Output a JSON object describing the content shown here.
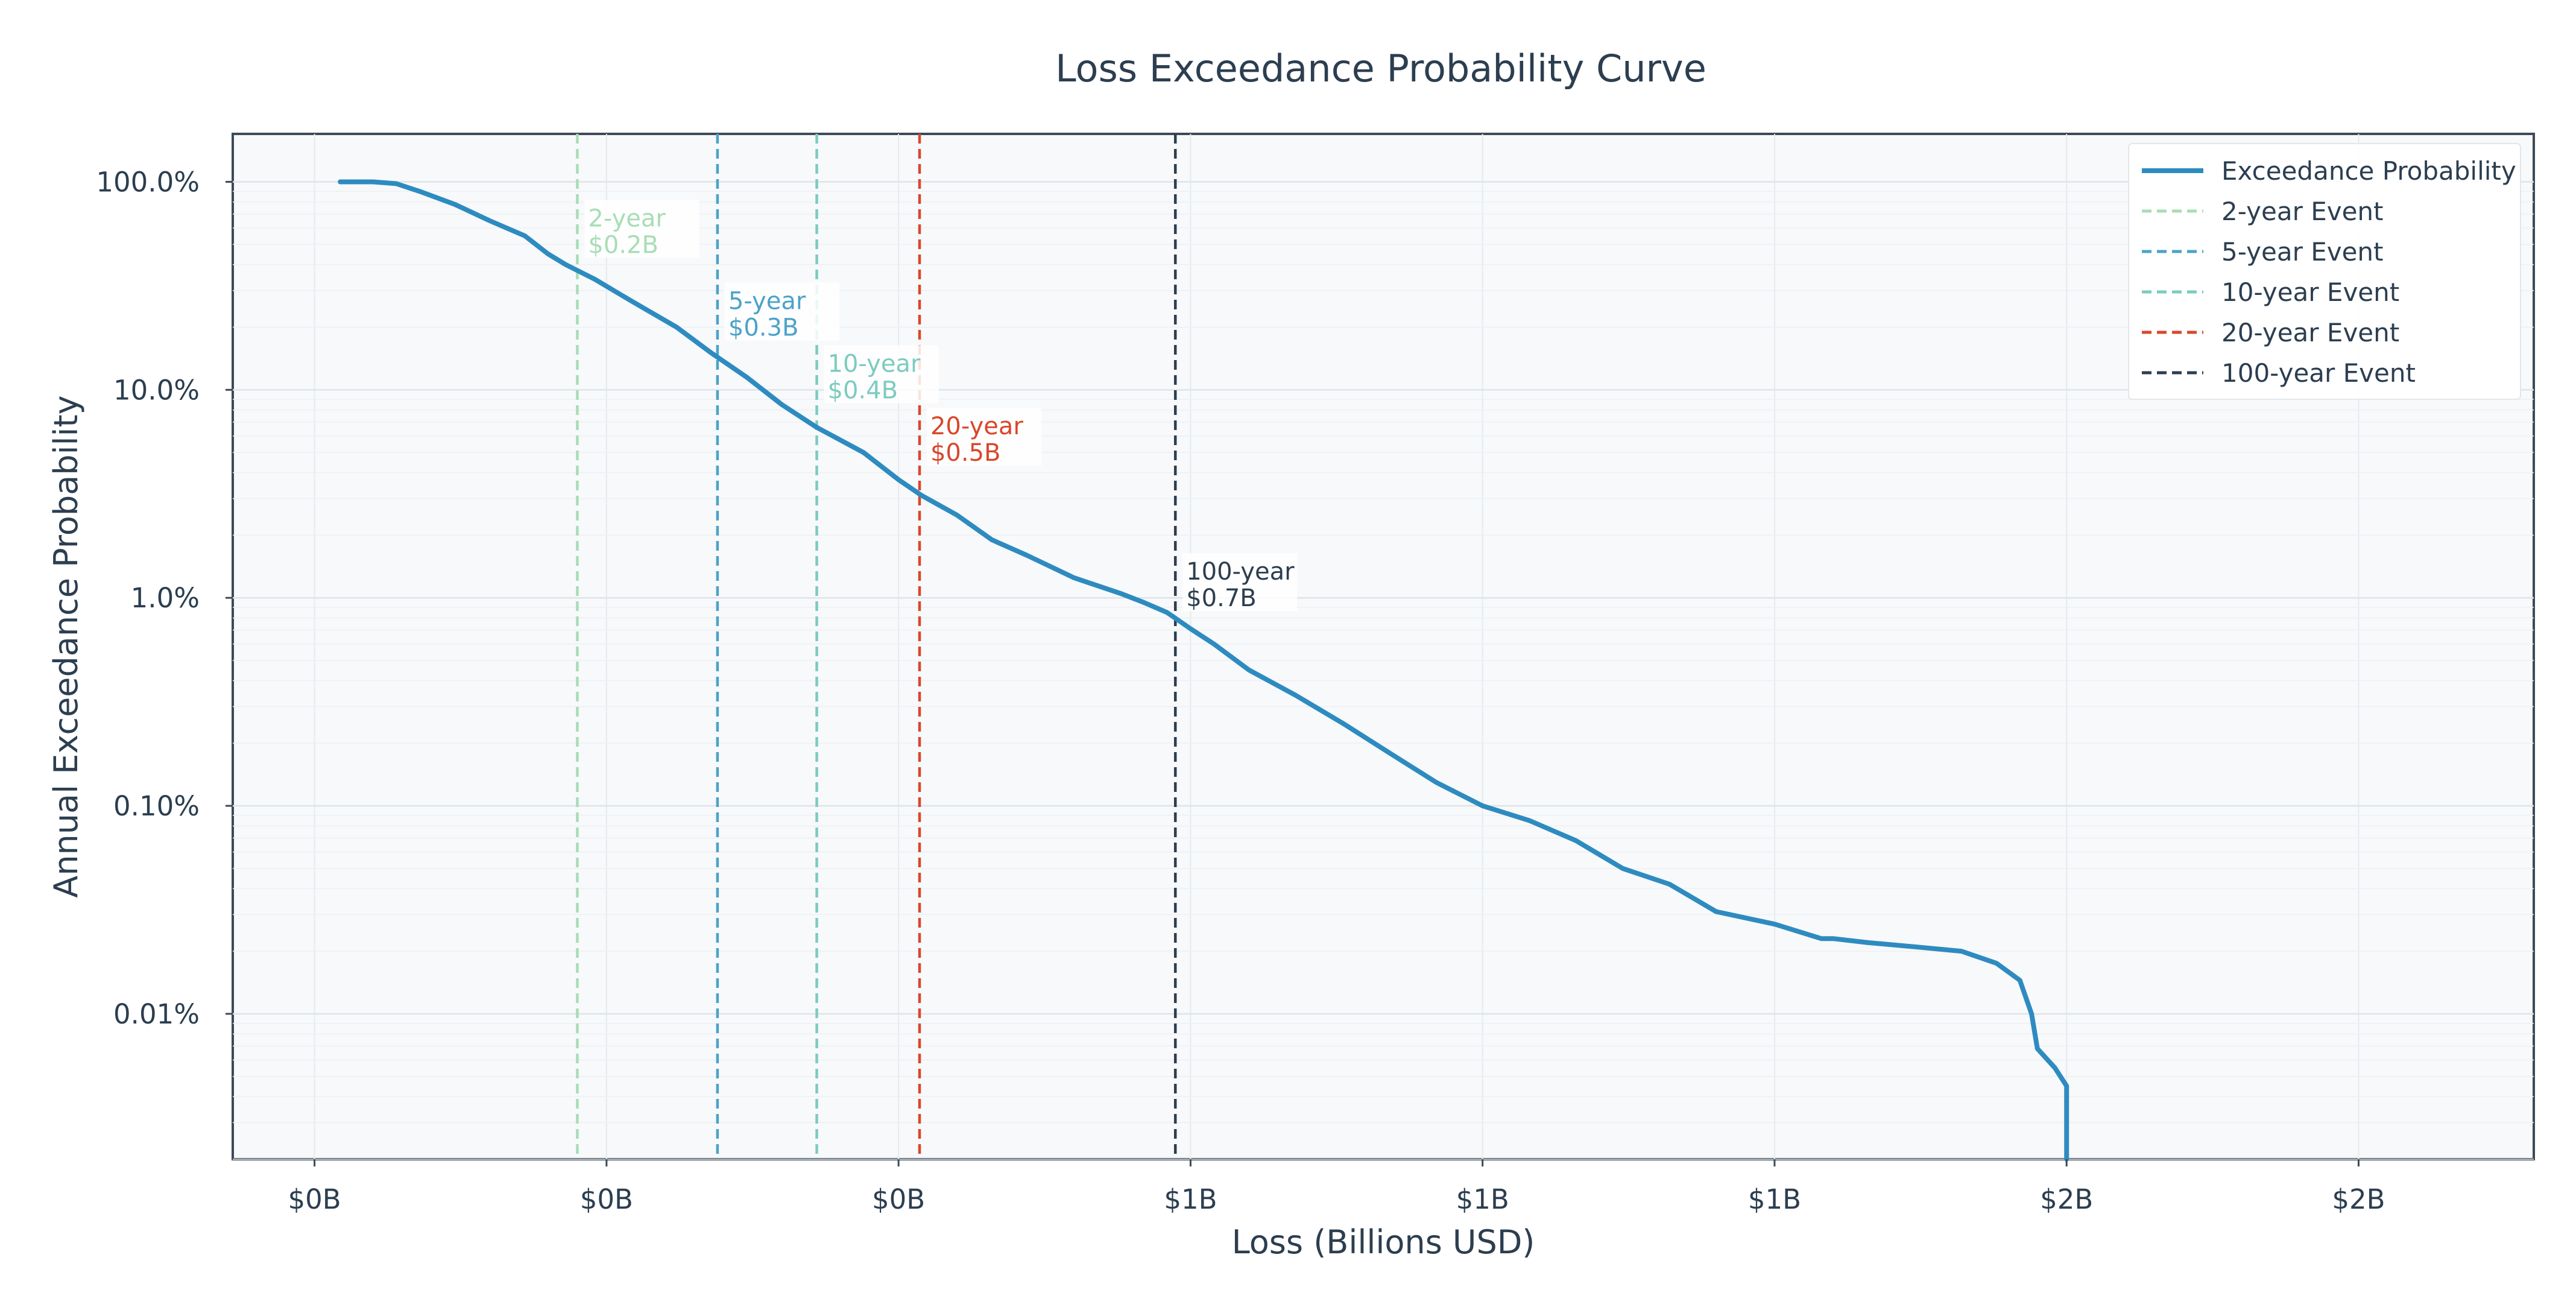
{
  "chart_data": {
    "type": "line",
    "title": "Loss Exceedance Probability Curve",
    "xlabel": "Loss (Billions USD)",
    "ylabel": "Annual Exceedance Probability",
    "xlim": [
      -0.07,
      1.9
    ],
    "ylim": [
      2e-05,
      1.7
    ],
    "yscale": "log",
    "grid": true,
    "legend_position": "top-right",
    "x_ticks": [
      {
        "value": 0.0,
        "label": "$0B"
      },
      {
        "value": 0.25,
        "label": "$0B"
      },
      {
        "value": 0.5,
        "label": "$0B"
      },
      {
        "value": 0.75,
        "label": "$1B"
      },
      {
        "value": 1.0,
        "label": "$1B"
      },
      {
        "value": 1.25,
        "label": "$1B"
      },
      {
        "value": 1.5,
        "label": "$2B"
      },
      {
        "value": 1.75,
        "label": "$2B"
      }
    ],
    "y_ticks": [
      {
        "value": 1.0,
        "label": "100.0%"
      },
      {
        "value": 0.1,
        "label": "10.0%"
      },
      {
        "value": 0.01,
        "label": "1.0%"
      },
      {
        "value": 0.001,
        "label": "0.10%"
      },
      {
        "value": 0.0001,
        "label": "0.01%"
      }
    ],
    "series": [
      {
        "name": "Exceedance Probability",
        "color": "#2e8bc0",
        "x": [
          0.022,
          0.05,
          0.07,
          0.09,
          0.12,
          0.15,
          0.18,
          0.2,
          0.215,
          0.24,
          0.27,
          0.31,
          0.34,
          0.37,
          0.4,
          0.43,
          0.47,
          0.5,
          0.52,
          0.55,
          0.58,
          0.61,
          0.65,
          0.69,
          0.71,
          0.73,
          0.75,
          0.77,
          0.8,
          0.84,
          0.88,
          0.92,
          0.96,
          1.0,
          1.04,
          1.08,
          1.12,
          1.16,
          1.2,
          1.25,
          1.29,
          1.3,
          1.33,
          1.37,
          1.41,
          1.44,
          1.46,
          1.47,
          1.475,
          1.49,
          1.5,
          1.5
        ],
        "y": [
          1.0,
          1.0,
          0.98,
          0.9,
          0.78,
          0.65,
          0.55,
          0.45,
          0.4,
          0.34,
          0.27,
          0.2,
          0.15,
          0.115,
          0.085,
          0.066,
          0.05,
          0.037,
          0.031,
          0.025,
          0.019,
          0.016,
          0.0125,
          0.0105,
          0.0095,
          0.0085,
          0.0071,
          0.006,
          0.0045,
          0.0034,
          0.0025,
          0.0018,
          0.0013,
          0.001,
          0.00085,
          0.00068,
          0.0005,
          0.00042,
          0.00031,
          0.00027,
          0.00023,
          0.00023,
          0.00022,
          0.00021,
          0.0002,
          0.000175,
          0.000145,
          0.0001,
          6.8e-05,
          5.5e-05,
          4.5e-05,
          2e-05
        ]
      }
    ],
    "events": [
      {
        "name": "2-year Event",
        "label": "2-year",
        "value_label": "$0.2B",
        "x": 0.225,
        "prob": 0.5,
        "color": "#a8ddb5"
      },
      {
        "name": "5-year Event",
        "label": "5-year",
        "value_label": "$0.3B",
        "x": 0.345,
        "prob": 0.2,
        "color": "#4ba3c8"
      },
      {
        "name": "10-year Event",
        "label": "10-year",
        "value_label": "$0.4B",
        "x": 0.43,
        "prob": 0.1,
        "color": "#7ccbc0"
      },
      {
        "name": "20-year Event",
        "label": "20-year",
        "value_label": "$0.5B",
        "x": 0.518,
        "prob": 0.05,
        "color": "#d9472b"
      },
      {
        "name": "100-year Event",
        "label": "100-year",
        "value_label": "$0.7B",
        "x": 0.737,
        "prob": 0.01,
        "color": "#2c3e50"
      }
    ]
  }
}
